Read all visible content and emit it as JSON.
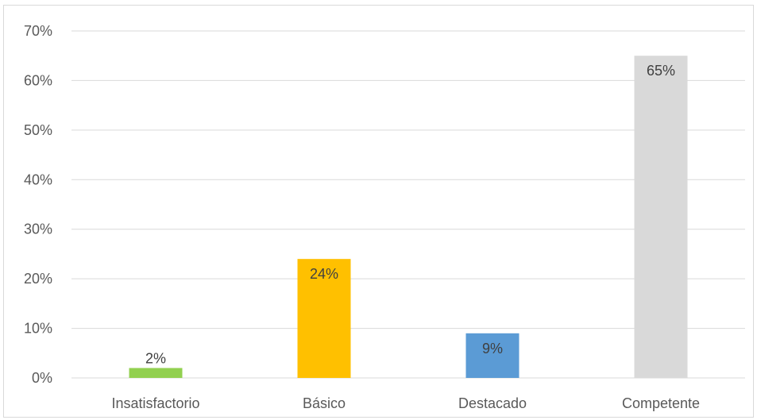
{
  "chart_data": {
    "type": "bar",
    "categories": [
      "Insatisfactorio",
      "Básico",
      "Destacado",
      "Competente"
    ],
    "values": [
      2,
      24,
      9,
      65
    ],
    "data_labels": [
      "2%",
      "24%",
      "9%",
      "65%"
    ],
    "colors": [
      "#92d050",
      "#ffc000",
      "#5b9bd5",
      "#d9d9d9"
    ],
    "ylim": [
      0,
      70
    ],
    "yticks": [
      0,
      10,
      20,
      30,
      40,
      50,
      60,
      70
    ],
    "ytick_labels": [
      "0%",
      "10%",
      "20%",
      "30%",
      "40%",
      "50%",
      "60%",
      "70%"
    ],
    "title": "",
    "xlabel": "",
    "ylabel": "",
    "grid": true,
    "gridline_color": "#d9d9d9",
    "legend": "none"
  }
}
